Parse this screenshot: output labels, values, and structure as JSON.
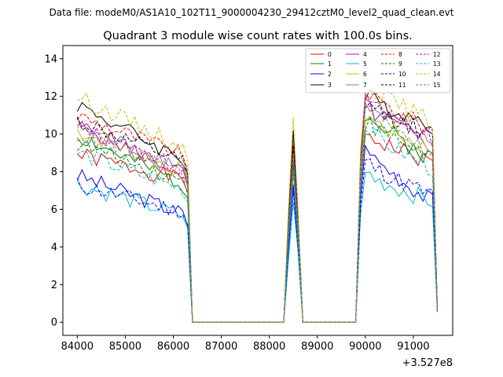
{
  "header": {
    "data_file": "Data file: modeM0/AS1A10_102T11_9000004230_29412cztM0_level2_quad_clean.evt"
  },
  "chart_data": {
    "type": "line",
    "title": "Quadrant 3 module wise count rates with 100.0s bins.",
    "xlabel": "",
    "ylabel": "",
    "x_offset_label": "+3.527e8",
    "x_offset": 352700000,
    "xlim": [
      83700,
      91820
    ],
    "ylim": [
      -0.7,
      14.7
    ],
    "xticks": [
      84000,
      85000,
      86000,
      87000,
      88000,
      89000,
      90000,
      91000
    ],
    "xtick_labels": [
      "84000",
      "85000",
      "86000",
      "87000",
      "88000",
      "89000",
      "90000",
      "91000"
    ],
    "yticks": [
      0,
      2,
      4,
      6,
      8,
      10,
      12,
      14
    ],
    "ytick_labels": [
      "0",
      "2",
      "4",
      "6",
      "8",
      "10",
      "12",
      "14"
    ],
    "grid": false,
    "legend_position": "top-right",
    "segments": [
      {
        "start": 84000,
        "end": 86300,
        "kind": "active"
      },
      {
        "start": 86400,
        "end": 88300,
        "kind": "zero"
      },
      {
        "start": 88400,
        "end": 88600,
        "kind": "spike"
      },
      {
        "start": 88700,
        "end": 89800,
        "kind": "zero"
      },
      {
        "start": 89900,
        "end": 91500,
        "kind": "active"
      }
    ],
    "series": [
      {
        "name": "0",
        "color": "#ff0000",
        "dash": "solid",
        "seg1_start": 8.9,
        "seg1_end": 7.5,
        "peak": 8.0,
        "seg2_high": 10.0,
        "seg2_end": 8.3
      },
      {
        "name": "1",
        "color": "#008000",
        "dash": "solid",
        "seg1_start": 9.9,
        "seg1_end": 7.2,
        "peak": 8.5,
        "seg2_high": 11.0,
        "seg2_end": 8.5
      },
      {
        "name": "2",
        "color": "#0000ff",
        "dash": "solid",
        "seg1_start": 7.8,
        "seg1_end": 5.7,
        "peak": 7.3,
        "seg2_high": 9.2,
        "seg2_end": 6.2
      },
      {
        "name": "3",
        "color": "#000000",
        "dash": "solid",
        "seg1_start": 11.6,
        "seg1_end": 8.5,
        "peak": 10.2,
        "seg2_high": 12.0,
        "seg2_end": 10.4
      },
      {
        "name": "4",
        "color": "#bf00bf",
        "dash": "solid",
        "seg1_start": 10.5,
        "seg1_end": 7.8,
        "peak": 9.0,
        "seg2_high": 11.5,
        "seg2_end": 9.2
      },
      {
        "name": "5",
        "color": "#00bfbf",
        "dash": "solid",
        "seg1_start": 7.3,
        "seg1_end": 5.6,
        "peak": 6.4,
        "seg2_high": 7.9,
        "seg2_end": 6.3
      },
      {
        "name": "6",
        "color": "#bfbf00",
        "dash": "solid",
        "seg1_start": 10.2,
        "seg1_end": 7.9,
        "peak": 9.3,
        "seg2_high": 11.0,
        "seg2_end": 9.0
      },
      {
        "name": "7",
        "color": "#808080",
        "dash": "solid",
        "seg1_start": 10.4,
        "seg1_end": 8.2,
        "peak": 9.5,
        "seg2_high": 11.4,
        "seg2_end": 9.4
      },
      {
        "name": "8",
        "color": "#ff0000",
        "dash": "dashed",
        "seg1_start": 11.0,
        "seg1_end": 8.8,
        "peak": 9.6,
        "seg2_high": 12.2,
        "seg2_end": 10.0
      },
      {
        "name": "9",
        "color": "#008000",
        "dash": "dashed",
        "seg1_start": 9.5,
        "seg1_end": 7.4,
        "peak": 8.4,
        "seg2_high": 10.6,
        "seg2_end": 8.7
      },
      {
        "name": "10",
        "color": "#0000ff",
        "dash": "dashed",
        "seg1_start": 7.3,
        "seg1_end": 5.8,
        "peak": 7.0,
        "seg2_high": 8.5,
        "seg2_end": 6.6
      },
      {
        "name": "11",
        "color": "#000000",
        "dash": "dashed",
        "seg1_start": 10.7,
        "seg1_end": 8.4,
        "peak": 9.4,
        "seg2_high": 11.6,
        "seg2_end": 9.8
      },
      {
        "name": "12",
        "color": "#bf00bf",
        "dash": "dashed",
        "seg1_start": 10.4,
        "seg1_end": 8.0,
        "peak": 8.9,
        "seg2_high": 11.8,
        "seg2_end": 9.6
      },
      {
        "name": "13",
        "color": "#00bfbf",
        "dash": "dashed",
        "seg1_start": 9.0,
        "seg1_end": 7.0,
        "peak": 8.1,
        "seg2_high": 10.2,
        "seg2_end": 8.0
      },
      {
        "name": "14",
        "color": "#bfbf00",
        "dash": "dashed",
        "seg1_start": 12.0,
        "seg1_end": 9.2,
        "peak": 10.9,
        "seg2_high": 12.6,
        "seg2_end": 10.5
      },
      {
        "name": "15",
        "color": "#808080",
        "dash": "dashed",
        "seg1_start": 10.0,
        "seg1_end": 7.9,
        "peak": 9.0,
        "seg2_high": 11.2,
        "seg2_end": 8.9
      }
    ]
  }
}
